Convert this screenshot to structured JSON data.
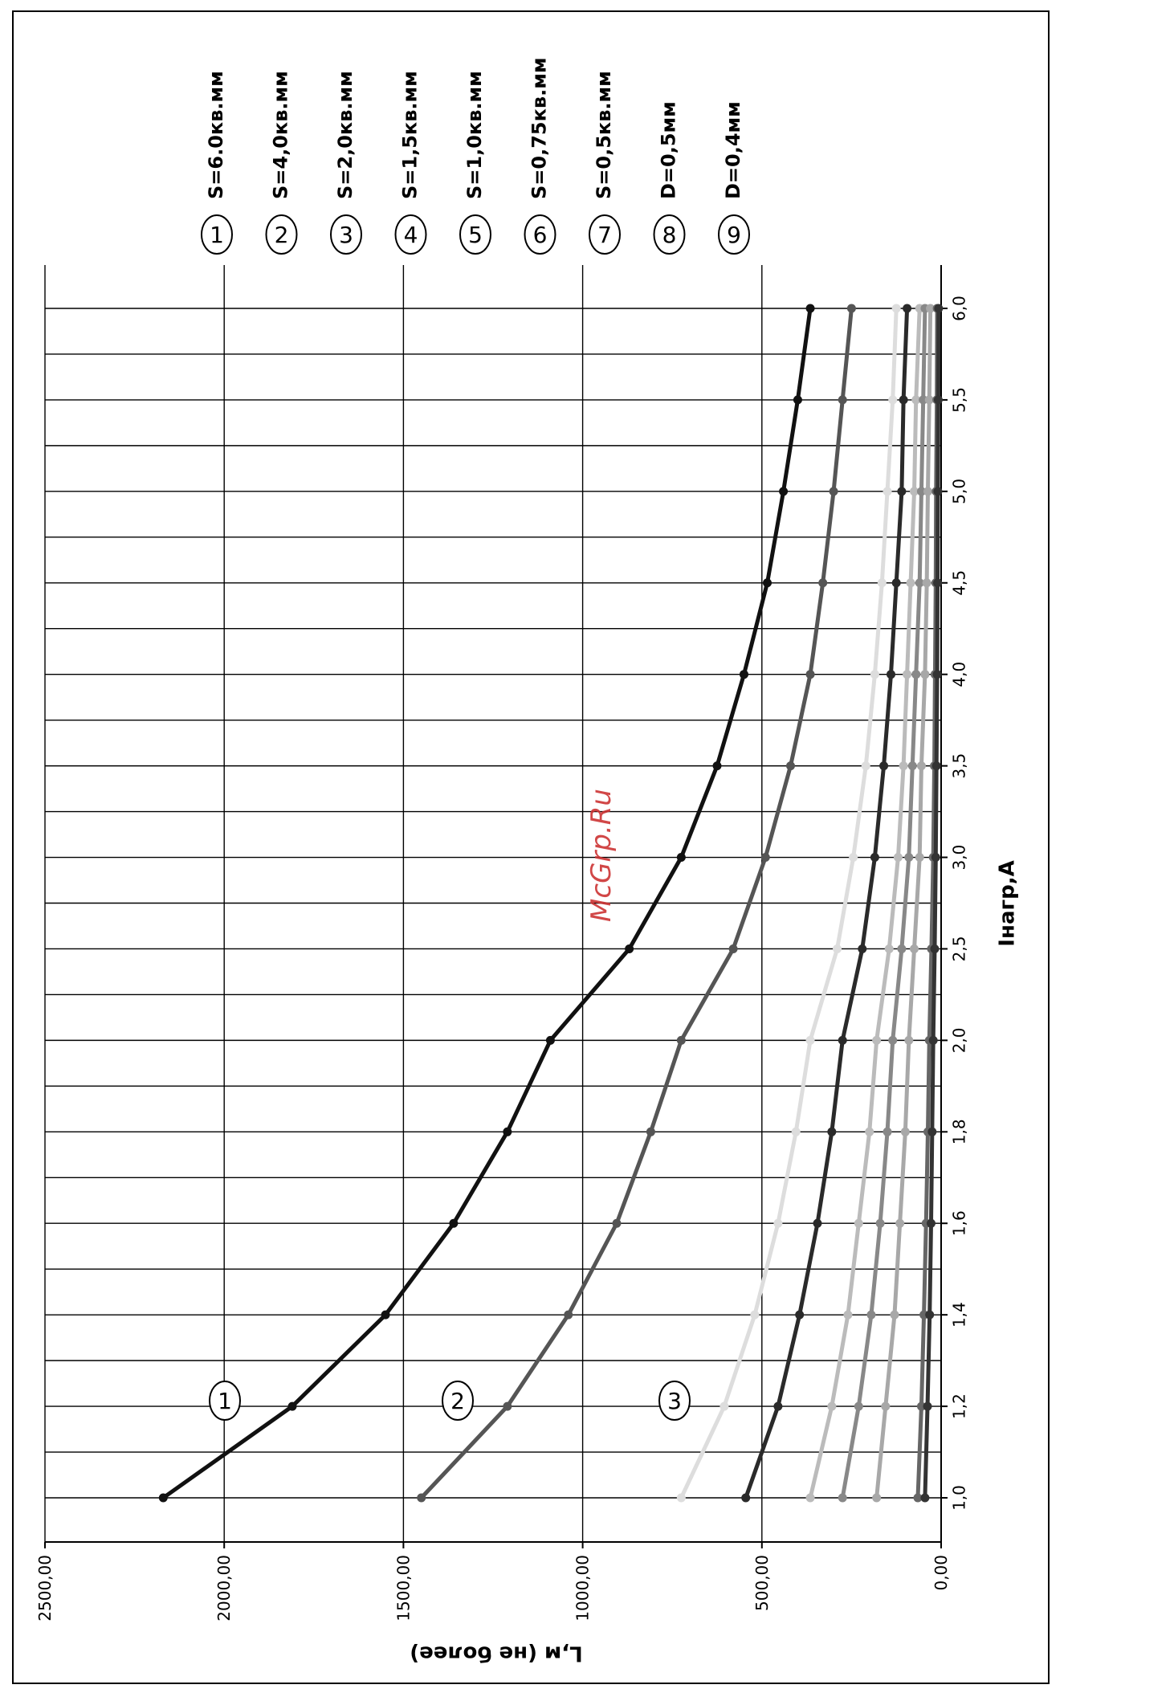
{
  "watermark": "McGrp.Ru",
  "chart_data": {
    "type": "line",
    "orientation": "rotated-90-clockwise",
    "xlabel": "Iнагр,А",
    "ylabel": "L,м (не более)",
    "categories": [
      "1,0",
      "1,2",
      "1,4",
      "1,6",
      "1,8",
      "2,0",
      "2,5",
      "3,0",
      "3,5",
      "4,0",
      "4,5",
      "5,0",
      "5,5",
      "6,0"
    ],
    "x": [
      1.0,
      1.2,
      1.4,
      1.6,
      1.8,
      2.0,
      2.5,
      3.0,
      3.5,
      4.0,
      4.5,
      5.0,
      5.5,
      6.0
    ],
    "ylim": [
      0,
      2500
    ],
    "yticks": [
      "0,00",
      "500,00",
      "1000,00",
      "1500,00",
      "2000,00",
      "2500,00"
    ],
    "ytick_values": [
      0,
      500,
      1000,
      1500,
      2000,
      2500
    ],
    "grid": true,
    "series": [
      {
        "name": "S=6.0кв.мм",
        "marker": "1",
        "color": "#111111",
        "values": [
          2170,
          1810,
          1550,
          1360,
          1210,
          1090,
          870,
          725,
          625,
          550,
          485,
          440,
          400,
          365
        ]
      },
      {
        "name": "S=4,0кв.мм",
        "marker": "2",
        "color": "#555555",
        "values": [
          1450,
          1210,
          1040,
          905,
          810,
          725,
          580,
          490,
          420,
          365,
          330,
          300,
          275,
          250
        ]
      },
      {
        "name": "S=2,0кв.мм",
        "marker": "3",
        "color": "#dddddd",
        "values": [
          725,
          605,
          520,
          455,
          405,
          365,
          290,
          245,
          210,
          185,
          165,
          150,
          135,
          125
        ]
      },
      {
        "name": "S=1,5кв.мм",
        "marker": "4",
        "color": "#2a2a2a",
        "values": [
          545,
          455,
          395,
          345,
          305,
          275,
          220,
          185,
          160,
          140,
          125,
          110,
          105,
          95
        ]
      },
      {
        "name": "S=1,0кв.мм",
        "marker": "5",
        "color": "#bbbbbb",
        "values": [
          365,
          305,
          260,
          230,
          200,
          180,
          145,
          120,
          105,
          95,
          85,
          75,
          70,
          60
        ]
      },
      {
        "name": "S=0,75кв.мм",
        "marker": "6",
        "color": "#888888",
        "values": [
          275,
          230,
          195,
          170,
          150,
          135,
          110,
          90,
          80,
          70,
          60,
          55,
          50,
          45
        ]
      },
      {
        "name": "S=0,5кв.мм",
        "marker": "7",
        "color": "#a8a8a8",
        "values": [
          180,
          155,
          130,
          115,
          100,
          90,
          75,
          60,
          55,
          45,
          40,
          37,
          33,
          30
        ]
      },
      {
        "name": "D=0,5мм",
        "marker": "8",
        "color": "#666666",
        "values": [
          65,
          55,
          48,
          42,
          37,
          33,
          27,
          22,
          19,
          17,
          15,
          14,
          12,
          11
        ]
      },
      {
        "name": "D=0,4мм",
        "marker": "9",
        "color": "#333333",
        "values": [
          45,
          38,
          32,
          28,
          25,
          22,
          18,
          15,
          13,
          11,
          10,
          9,
          8,
          7
        ]
      }
    ]
  }
}
